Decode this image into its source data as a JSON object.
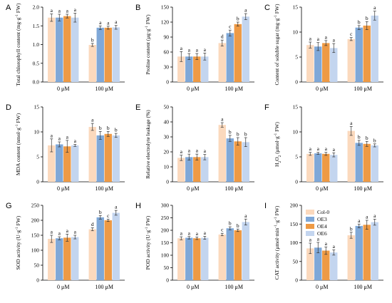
{
  "colors": {
    "Col-0": "#fbd9bd",
    "OE3": "#7fa8d8",
    "OE4": "#ee9a45",
    "OE6": "#c3d5ef"
  },
  "legend": {
    "entries": [
      "Col-0",
      "OE3",
      "OE4",
      "OE6"
    ],
    "placement": "inside panel I, top-left"
  },
  "chart_data": [
    {
      "panel": "A",
      "type": "bar",
      "ylabel": "Total chlorophyll content (mg·g⁻¹ FW)",
      "categories": [
        "0 μM",
        "100 μM"
      ],
      "ylim": [
        0,
        2.0
      ],
      "yticks": [
        "0.0",
        "0.5",
        "1.0",
        "1.5",
        "2.0"
      ],
      "series": [
        {
          "name": "Col-0",
          "values": [
            1.72,
            0.99
          ],
          "errors": [
            0.1,
            0.04
          ],
          "letters": [
            "a",
            "b"
          ]
        },
        {
          "name": "OE3",
          "values": [
            1.72,
            1.45
          ],
          "errors": [
            0.09,
            0.05
          ],
          "letters": [
            "a",
            "a"
          ]
        },
        {
          "name": "OE4",
          "values": [
            1.76,
            1.45
          ],
          "errors": [
            0.05,
            0.04
          ],
          "letters": [
            "a",
            "a"
          ]
        },
        {
          "name": "OE6",
          "values": [
            1.72,
            1.46
          ],
          "errors": [
            0.12,
            0.05
          ],
          "letters": [
            "a",
            "a"
          ]
        }
      ]
    },
    {
      "panel": "B",
      "type": "bar",
      "ylabel": "Proline content (μg·g⁻¹ FW)",
      "categories": [
        "0 μM",
        "100 μM"
      ],
      "ylim": [
        0,
        150
      ],
      "yticks": [
        "0",
        "30",
        "60",
        "90",
        "120",
        "150"
      ],
      "series": [
        {
          "name": "Col-0",
          "values": [
            51,
            78
          ],
          "errors": [
            10,
            6
          ],
          "letters": [
            "a",
            "d"
          ]
        },
        {
          "name": "OE3",
          "values": [
            51,
            98
          ],
          "errors": [
            6,
            6
          ],
          "letters": [
            "a",
            "c"
          ]
        },
        {
          "name": "OE4",
          "values": [
            51,
            116
          ],
          "errors": [
            6,
            4
          ],
          "letters": [
            "a",
            "b"
          ]
        },
        {
          "name": "OE6",
          "values": [
            51,
            131
          ],
          "errors": [
            7,
            6
          ],
          "letters": [
            "a",
            "a"
          ]
        }
      ]
    },
    {
      "panel": "C",
      "type": "bar",
      "ylabel": "Content of soluble sugar (mg·g⁻¹ FW)",
      "categories": [
        "0 μM",
        "100 μM"
      ],
      "ylim": [
        0,
        15
      ],
      "yticks": [
        "0",
        "5",
        "10",
        "15"
      ],
      "series": [
        {
          "name": "Col-0",
          "values": [
            7.4,
            8.6
          ],
          "errors": [
            0.6,
            0.3
          ],
          "letters": [
            "a",
            "c"
          ]
        },
        {
          "name": "OE3",
          "values": [
            7.1,
            10.9
          ],
          "errors": [
            0.8,
            0.4
          ],
          "letters": [
            "a",
            "b"
          ]
        },
        {
          "name": "OE4",
          "values": [
            7.8,
            11.3
          ],
          "errors": [
            0.5,
            0.8
          ],
          "letters": [
            "a",
            "b"
          ]
        },
        {
          "name": "OE6",
          "values": [
            6.8,
            13.3
          ],
          "errors": [
            0.9,
            0.9
          ],
          "letters": [
            "a",
            "a"
          ]
        }
      ]
    },
    {
      "panel": "D",
      "type": "bar",
      "ylabel": "MDA content (nmol·g⁻¹ FW)",
      "categories": [
        "0 μM",
        "100 μM"
      ],
      "ylim": [
        0,
        15
      ],
      "yticks": [
        "0",
        "5",
        "10",
        "15"
      ],
      "series": [
        {
          "name": "Col-0",
          "values": [
            7.3,
            11.0
          ],
          "errors": [
            1.3,
            0.7
          ],
          "letters": [
            "a",
            "a"
          ]
        },
        {
          "name": "OE3",
          "values": [
            7.5,
            9.3
          ],
          "errors": [
            0.5,
            0.8
          ],
          "letters": [
            "a",
            "b"
          ]
        },
        {
          "name": "OE4",
          "values": [
            7.1,
            9.6
          ],
          "errors": [
            1.2,
            0.5
          ],
          "letters": [
            "a",
            "b"
          ]
        },
        {
          "name": "OE6",
          "values": [
            7.3,
            9.3
          ],
          "errors": [
            0.2,
            0.4
          ],
          "letters": [
            "a",
            "b"
          ]
        }
      ]
    },
    {
      "panel": "E",
      "type": "bar",
      "ylabel": "Relative electrolyte leakage (%)",
      "categories": [
        "0 μM",
        "100 μM"
      ],
      "ylim": [
        0,
        50
      ],
      "yticks": [
        "0",
        "10",
        "20",
        "30",
        "40",
        "50"
      ],
      "series": [
        {
          "name": "Col-0",
          "values": [
            16,
            38
          ],
          "errors": [
            1.8,
            1.5
          ],
          "letters": [
            "a",
            "a"
          ]
        },
        {
          "name": "OE3",
          "values": [
            16.5,
            29
          ],
          "errors": [
            2,
            2
          ],
          "letters": [
            "a",
            "b"
          ]
        },
        {
          "name": "OE4",
          "values": [
            16.5,
            27
          ],
          "errors": [
            2,
            2.5
          ],
          "letters": [
            "a",
            "b"
          ]
        },
        {
          "name": "OE6",
          "values": [
            16.5,
            26.5
          ],
          "errors": [
            1.8,
            3
          ],
          "letters": [
            "a",
            "b"
          ]
        }
      ]
    },
    {
      "panel": "F",
      "type": "bar",
      "ylabel": "H2O2 (μmol·g⁻¹ FW)",
      "categories": [
        "0 μM",
        "100 μM"
      ],
      "ylim": [
        0,
        15
      ],
      "yticks": [
        "0",
        "5",
        "10",
        "15"
      ],
      "series": [
        {
          "name": "Col-0",
          "values": [
            5.6,
            10.2
          ],
          "errors": [
            0.3,
            0.9
          ],
          "letters": [
            "a",
            "a"
          ]
        },
        {
          "name": "OE3",
          "values": [
            5.7,
            7.8
          ],
          "errors": [
            0.2,
            0.5
          ],
          "letters": [
            "a",
            "b"
          ]
        },
        {
          "name": "OE4",
          "values": [
            5.6,
            7.6
          ],
          "errors": [
            0.3,
            0.5
          ],
          "letters": [
            "a",
            "b"
          ]
        },
        {
          "name": "OE6",
          "values": [
            5.4,
            7.3
          ],
          "errors": [
            0.4,
            0.3
          ],
          "letters": [
            "a",
            "b"
          ]
        }
      ]
    },
    {
      "panel": "G",
      "type": "bar",
      "ylabel": "SOD activity (U·g⁻¹ FW)",
      "categories": [
        "0 μM",
        "100 μM"
      ],
      "ylim": [
        0,
        250
      ],
      "yticks": [
        "0",
        "50",
        "100",
        "150",
        "200",
        "250"
      ],
      "series": [
        {
          "name": "Col-0",
          "values": [
            138,
            170
          ],
          "errors": [
            12,
            5
          ],
          "letters": [
            "a",
            "d"
          ]
        },
        {
          "name": "OE3",
          "values": [
            140,
            210
          ],
          "errors": [
            5,
            6
          ],
          "letters": [
            "a",
            "b"
          ]
        },
        {
          "name": "OE4",
          "values": [
            142,
            200
          ],
          "errors": [
            12,
            4
          ],
          "letters": [
            "a",
            "c"
          ]
        },
        {
          "name": "OE6",
          "values": [
            144,
            225
          ],
          "errors": [
            6,
            8
          ],
          "letters": [
            "a",
            "a"
          ]
        }
      ]
    },
    {
      "panel": "H",
      "type": "bar",
      "ylabel": "POD activity (U·g⁻¹ FW)",
      "categories": [
        "0 μM",
        "100 μM"
      ],
      "ylim": [
        0,
        300
      ],
      "yticks": [
        "0",
        "50",
        "100",
        "150",
        "200",
        "250",
        "300"
      ],
      "series": [
        {
          "name": "Col-0",
          "values": [
            168,
            183
          ],
          "errors": [
            6,
            5
          ],
          "letters": [
            "a",
            "c"
          ]
        },
        {
          "name": "OE3",
          "values": [
            170,
            208
          ],
          "errors": [
            5,
            6
          ],
          "letters": [
            "a",
            "b"
          ]
        },
        {
          "name": "OE4",
          "values": [
            168,
            200
          ],
          "errors": [
            5,
            5
          ],
          "letters": [
            "a",
            "b"
          ]
        },
        {
          "name": "OE6",
          "values": [
            170,
            233
          ],
          "errors": [
            6,
            12
          ],
          "letters": [
            "a",
            "a"
          ]
        }
      ]
    },
    {
      "panel": "I",
      "type": "bar",
      "ylabel": "CAT activity (μmol·min⁻¹·g⁻¹ FW)",
      "categories": [
        "0 μM",
        "100 μM"
      ],
      "ylim": [
        0,
        200
      ],
      "yticks": [
        "0",
        "50",
        "100",
        "150",
        "200"
      ],
      "series": [
        {
          "name": "Col-0",
          "values": [
            85,
            120
          ],
          "errors": [
            14,
            8
          ],
          "letters": [
            "a",
            "b"
          ]
        },
        {
          "name": "OE3",
          "values": [
            87,
            145
          ],
          "errors": [
            14,
            5
          ],
          "letters": [
            "a",
            "a"
          ]
        },
        {
          "name": "OE4",
          "values": [
            79,
            148
          ],
          "errors": [
            10,
            12
          ],
          "letters": [
            "a",
            "a"
          ]
        },
        {
          "name": "OE6",
          "values": [
            74,
            155
          ],
          "errors": [
            7,
            8
          ],
          "letters": [
            "a",
            "a"
          ]
        }
      ]
    }
  ]
}
